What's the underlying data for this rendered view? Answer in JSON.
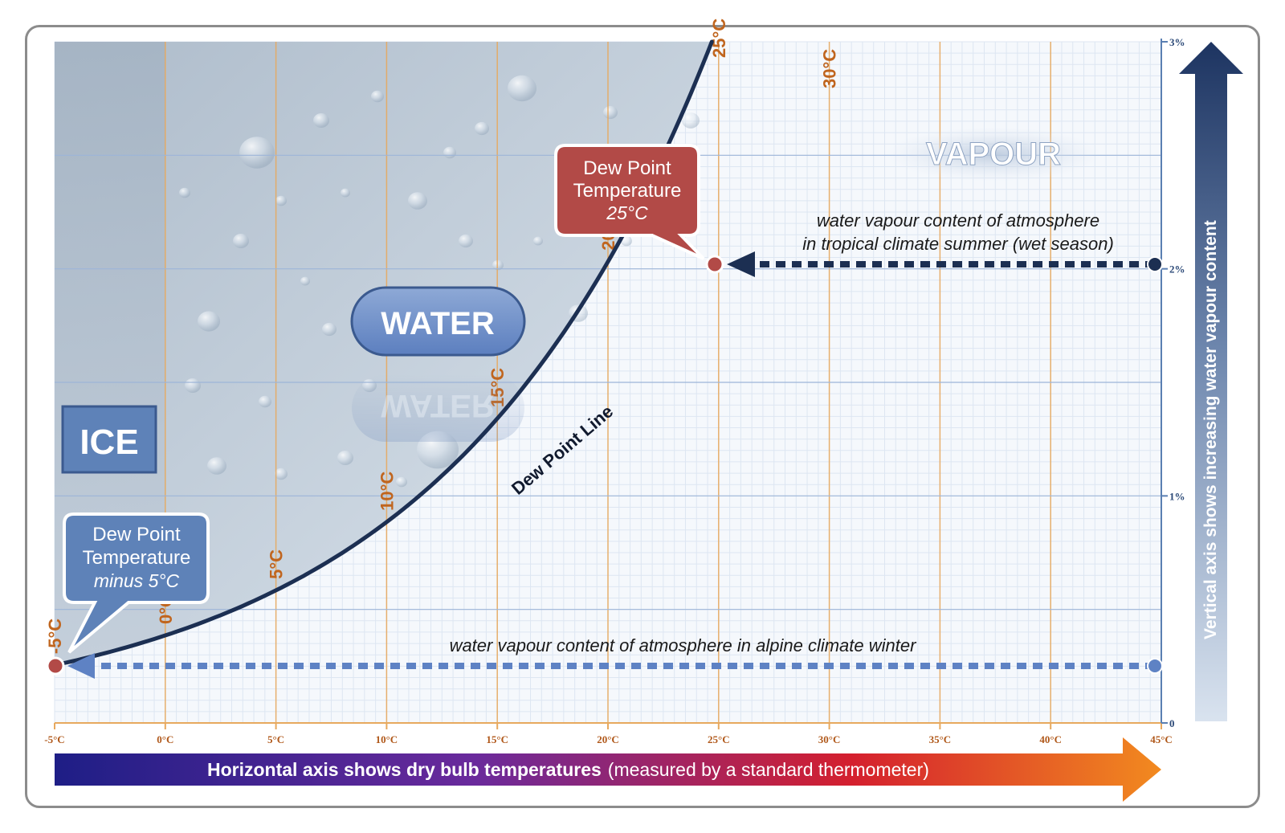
{
  "regions": {
    "ice": "ICE",
    "water": "WATER",
    "vapour": "VAPOUR"
  },
  "dew_point_line_label": "Dew Point Line",
  "callout_high": {
    "line1": "Dew Point",
    "line2": "Temperature",
    "value": "25°C"
  },
  "callout_low": {
    "line1": "Dew Point",
    "line2": "Temperature",
    "value": "minus 5°C"
  },
  "annotations": {
    "tropical_line1": "water vapour content of atmosphere",
    "tropical_line2": "in tropical climate summer (wet season)",
    "alpine": "water vapour content of atmosphere in alpine climate winter"
  },
  "x_axis": {
    "label_bold": "Horizontal axis shows dry bulb temperatures",
    "label_normal": "(measured by a standard thermometer)",
    "ticks": [
      "-5°C",
      "0°C",
      "5°C",
      "10°C",
      "15°C",
      "20°C",
      "25°C",
      "30°C",
      "35°C",
      "40°C",
      "45°C"
    ]
  },
  "y_axis": {
    "label": "Vertical axis shows increasing water vapour content",
    "ticks": [
      "0",
      "1%",
      "2%",
      "3%"
    ]
  },
  "isotherm_labels": [
    "-5°C",
    "0°C",
    "5°C",
    "10°C",
    "15°C",
    "20°C",
    "25°C",
    "30°C"
  ],
  "colors": {
    "curve": "#1c2f52",
    "ice_box": "#5e82b8",
    "callout_high_fill": "#b24a47",
    "callout_low_fill": "#5e82b8",
    "grid_orange": "#e7a95e",
    "grid_blue": "#bcd0ea",
    "tropical_arrow": "#1c2f52",
    "alpine_arrow": "#5e82c4"
  }
}
